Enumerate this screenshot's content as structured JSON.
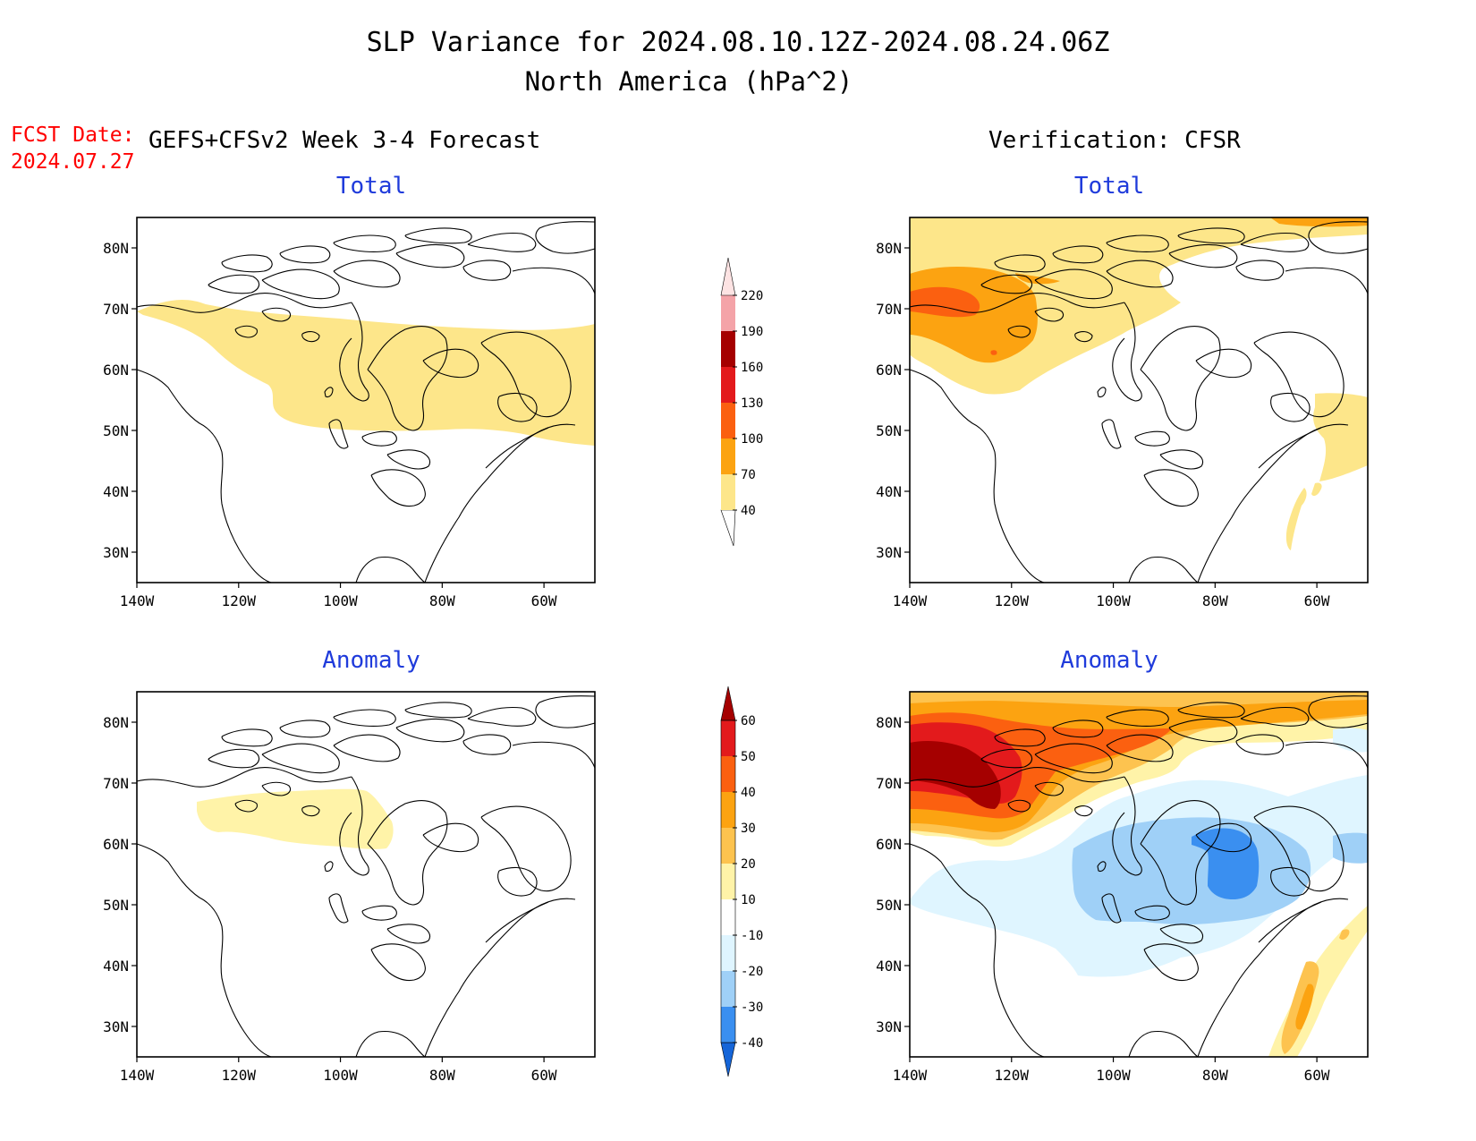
{
  "title": {
    "line1": "SLP Variance for 2024.08.10.12Z-2024.08.24.06Z",
    "line2": "North America (hPa^2)"
  },
  "fcst_date": {
    "label": "FCST Date:",
    "value": "2024.07.27"
  },
  "forecast_heading": "GEFS+CFSv2 Week 3-4 Forecast",
  "verification_heading": "Verification: CFSR",
  "panels": {
    "fcst_total": {
      "title": "Total"
    },
    "verif_total": {
      "title": "Total"
    },
    "fcst_anom": {
      "title": "Anomaly"
    },
    "verif_anom": {
      "title": "Anomaly"
    }
  },
  "axes": {
    "lat_ticks": [
      "80N",
      "70N",
      "60N",
      "50N",
      "40N",
      "30N"
    ],
    "lon_ticks": [
      "140W",
      "120W",
      "100W",
      "80W",
      "60W"
    ],
    "lat_values": [
      80,
      70,
      60,
      50,
      40,
      30
    ],
    "lon_values": [
      -140,
      -120,
      -100,
      -80,
      -60
    ],
    "lon_range": [
      -140,
      -50
    ],
    "lat_range": [
      25,
      85
    ]
  },
  "colorbars": {
    "total": {
      "labels": [
        "40",
        "70",
        "100",
        "130",
        "160",
        "190",
        "220"
      ],
      "colors": [
        "#fde68a",
        "#fca311",
        "#fb6010",
        "#e31a1c",
        "#a50000",
        "#f4a3a8",
        "#fde3e3"
      ]
    },
    "anomaly": {
      "labels": [
        "-40",
        "-30",
        "-20",
        "-10",
        "10",
        "20",
        "30",
        "40",
        "50",
        "60"
      ],
      "colors": [
        "#1565d8",
        "#3a8ff0",
        "#9fd0f7",
        "#dff5ff",
        "#ffffff",
        "#fff3a8",
        "#fdc34f",
        "#fca311",
        "#fb6010",
        "#e31a1c",
        "#a50000"
      ]
    }
  },
  "colors": {
    "title_text": "#000000",
    "fcst_text": "#ff0000",
    "panel_title": "#1f3bdb"
  }
}
